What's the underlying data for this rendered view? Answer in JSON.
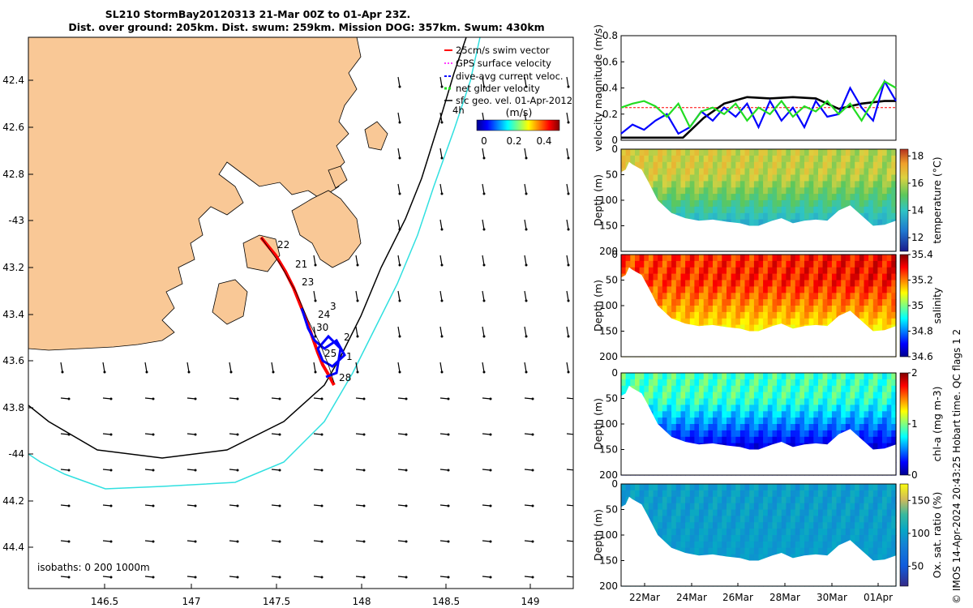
{
  "figure": {
    "title_line1": "SL210 StormBay20120313 21-Mar 00Z to 01-Apr 23Z.",
    "title_line2": "Dist. over ground: 205km. Dist. swum: 259km. Mission DOG: 357km. Swum: 430km",
    "credit": "© IMOS 14-Apr-2024 20:43:25 Hobart time. QC flags 1  2"
  },
  "colors": {
    "land": "#f9c896",
    "shelf_contour": "#000000",
    "deep_contour": "#30e0e0",
    "track_red": "#ff0000",
    "track_blue": "#0000ff",
    "gps": "#ff00ff",
    "net": "#22dd22",
    "sfc": "#000000"
  },
  "map": {
    "lon_ticks": [
      "146.5",
      "147",
      "147.5",
      "148",
      "148.5",
      "149"
    ],
    "lat_ticks": [
      "42.4",
      "42.6",
      "42.8",
      "-43",
      "43.2",
      "43.4",
      "43.6",
      "43.8",
      "-44",
      "44.2",
      "44.4"
    ],
    "isobaths_note": "isobaths: 0   200  1000m",
    "contour_marker": "4h",
    "day_labels": [
      "22",
      "21",
      "23",
      "24",
      "3",
      "30",
      "2",
      "25",
      "1",
      "28"
    ],
    "legend": [
      {
        "label": "25cm/s swim vector",
        "color": "#ff0000"
      },
      {
        "label": "GPS surface velocity",
        "color": "#ff00ff"
      },
      {
        "label": "dive-avg current veloc.",
        "color": "#0000ff"
      },
      {
        "label": "net glider velocity",
        "color": "#22dd22"
      },
      {
        "label": "sfc geo. vel. 01-Apr-2012",
        "color": "#000000"
      }
    ],
    "colorbar": {
      "title": "(m/s)",
      "ticks": [
        "0",
        "0.2",
        "0.4"
      ]
    }
  },
  "chart_data": [
    {
      "type": "line",
      "title": "",
      "ylabel": "velocity magnitude (m/s)",
      "ylim": [
        0,
        0.8
      ],
      "yticks": [
        "0",
        "0.2",
        "0.4",
        "0.6",
        "0.8"
      ],
      "x_range_days": [
        0,
        12.0
      ],
      "reference_line": 0.25,
      "series": [
        {
          "name": "sfc geo. vel.",
          "color": "#000000",
          "x": [
            0,
            1.5,
            2.7,
            3.6,
            4.5,
            5.5,
            6.5,
            7.5,
            8.5,
            9.5,
            10.5,
            11.5,
            12
          ],
          "values": [
            0.02,
            0.02,
            0.02,
            0.17,
            0.28,
            0.33,
            0.32,
            0.33,
            0.32,
            0.24,
            0.28,
            0.3,
            0.3
          ]
        },
        {
          "name": "dive-avg current",
          "color": "#0000ff",
          "x": [
            0,
            0.5,
            1,
            1.5,
            2,
            2.5,
            3,
            3.5,
            4,
            4.5,
            5,
            5.5,
            6,
            6.5,
            7,
            7.5,
            8,
            8.5,
            9,
            9.5,
            10,
            10.5,
            11,
            11.5,
            12
          ],
          "values": [
            0.05,
            0.12,
            0.08,
            0.15,
            0.2,
            0.05,
            0.1,
            0.22,
            0.15,
            0.25,
            0.18,
            0.28,
            0.1,
            0.3,
            0.15,
            0.25,
            0.1,
            0.3,
            0.18,
            0.2,
            0.4,
            0.25,
            0.15,
            0.45,
            0.3
          ]
        },
        {
          "name": "net glider velocity",
          "color": "#22dd22",
          "x": [
            0,
            0.5,
            1,
            1.5,
            2,
            2.5,
            3,
            3.5,
            4,
            4.5,
            5,
            5.5,
            6,
            6.5,
            7,
            7.5,
            8,
            8.5,
            9,
            9.5,
            10,
            10.5,
            11,
            11.5,
            12
          ],
          "values": [
            0.25,
            0.28,
            0.3,
            0.26,
            0.18,
            0.28,
            0.1,
            0.22,
            0.25,
            0.2,
            0.28,
            0.15,
            0.25,
            0.2,
            0.3,
            0.18,
            0.26,
            0.22,
            0.3,
            0.2,
            0.28,
            0.15,
            0.3,
            0.45,
            0.4
          ]
        }
      ]
    },
    {
      "type": "heatmap",
      "ylabel": "Depth (m)",
      "clabel": "temperature (°C)",
      "ylim": [
        0,
        200
      ],
      "yticks": [
        "0",
        "50",
        "100",
        "150",
        "200"
      ],
      "cticks": [
        "12",
        "14",
        "16",
        "18"
      ],
      "crange": [
        11,
        18.5
      ],
      "early": 16.5,
      "late": 16.0,
      "deep": 13.5
    },
    {
      "type": "heatmap",
      "ylabel": "Depth (m)",
      "clabel": "salinity",
      "ylim": [
        0,
        200
      ],
      "yticks": [
        "0",
        "50",
        "100",
        "150",
        "200"
      ],
      "cticks": [
        "34.6",
        "34.8",
        "35",
        "35.2",
        "35.4"
      ],
      "crange": [
        34.6,
        35.4
      ],
      "early": 35.25,
      "late": 35.3,
      "deep": 35.1
    },
    {
      "type": "heatmap",
      "ylabel": "Depth (m)",
      "clabel": "chl-a (mg m-3)",
      "ylim": [
        0,
        200
      ],
      "yticks": [
        "0",
        "50",
        "100",
        "150",
        "200"
      ],
      "cticks": [
        "0",
        "1",
        "2"
      ],
      "crange": [
        0,
        2
      ],
      "early": 0.9,
      "late": 0.85,
      "deep": 0.15
    },
    {
      "type": "heatmap",
      "ylabel": "Depth (m)",
      "clabel": "Ox. sat. ratio (%)",
      "ylim": [
        0,
        200
      ],
      "yticks": [
        "0",
        "50",
        "100",
        "150",
        "200"
      ],
      "cticks": [
        "50",
        "100",
        "150"
      ],
      "crange": [
        20,
        175
      ],
      "early": 100,
      "late": 100,
      "deep": 98
    }
  ],
  "time_axis": {
    "ticks": [
      "22Mar",
      "24Mar",
      "26Mar",
      "28Mar",
      "30Mar",
      "01Apr"
    ]
  }
}
